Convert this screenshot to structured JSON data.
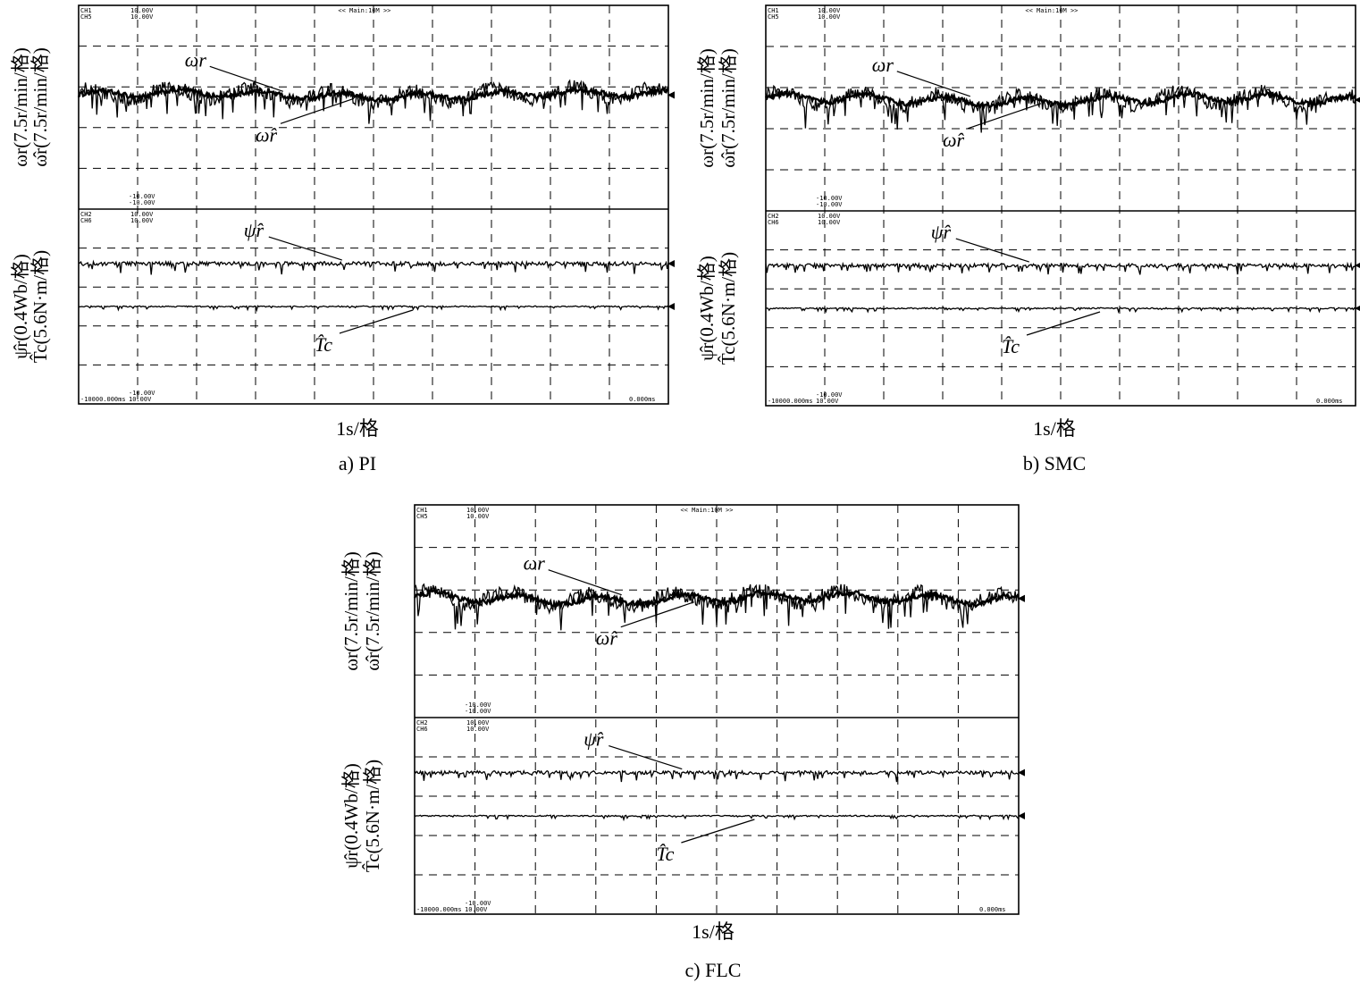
{
  "chart_data": [
    {
      "type": "line",
      "caption": "a) PI",
      "xlabel": "1s/格",
      "scope_text": {
        "ch_top": "CH1\nCH5",
        "volt_top": "10.00V\n10.00V",
        "ch_bot": "CH2\nCH6",
        "volt_bot": "10.00V\n10.00V",
        "neg_top": "-10.00V\n-10.00V",
        "neg_bot": "-10.00V\n10.00V",
        "header": "<< Main:10M >>",
        "time_left": "-10000.000ms",
        "time_right": "0.000ms"
      },
      "upper": {
        "ylabel_1": "ωr(7.5r/min/格)",
        "ylabel_2": "ω̂r(7.5r/min/格)",
        "series": [
          {
            "name": "ωr",
            "level": 2.8,
            "noise": 0.12,
            "ripple": 0.08
          },
          {
            "name": "ω̂r",
            "level": 2.8,
            "noise": 0.35,
            "ripple": 0.14
          }
        ]
      },
      "lower": {
        "ylabel_1": "ψ̂r(0.4Wb/格)",
        "ylabel_2": "T̂c(5.6N·m/格)",
        "series": [
          {
            "name": "ψ̂r",
            "level": 3.6,
            "noise": 0.25
          },
          {
            "name": "T̂c",
            "level": 2.5,
            "noise": 0.08
          }
        ]
      }
    },
    {
      "type": "line",
      "caption": "b) SMC",
      "xlabel": "1s/格",
      "scope_text": {
        "ch_top": "CH1\nCH5",
        "volt_top": "10.00V\n10.00V",
        "ch_bot": "CH2\nCH6",
        "volt_bot": "10.00V\n10.00V",
        "neg_top": "-10.00V\n-10.00V",
        "neg_bot": "-10.00V\n10.00V",
        "header": "<< Main:10M >>",
        "time_left": "-10000.000ms",
        "time_right": "0.000ms"
      },
      "upper": {
        "ylabel_1": "ωr(7.5r/min/格)",
        "ylabel_2": "ω̂r(7.5r/min/格)",
        "series": [
          {
            "name": "ωr",
            "level": 2.7,
            "noise": 0.12,
            "ripple": 0.1
          },
          {
            "name": "ω̂r",
            "level": 2.7,
            "noise": 0.35,
            "ripple": 0.16
          }
        ]
      },
      "lower": {
        "ylabel_1": "ψ̂r(0.4Wb/格)",
        "ylabel_2": "T̂c(5.6N·m/格)",
        "series": [
          {
            "name": "ψ̂r",
            "level": 3.6,
            "noise": 0.22
          },
          {
            "name": "T̂c",
            "level": 2.5,
            "noise": 0.08
          }
        ]
      }
    },
    {
      "type": "line",
      "caption": "c) FLC",
      "xlabel": "1s/格",
      "scope_text": {
        "ch_top": "CH1\nCH5",
        "volt_top": "10.00V\n10.00V",
        "ch_bot": "CH2\nCH6",
        "volt_bot": "10.00V\n10.00V",
        "neg_top": "-10.00V\n-10.00V",
        "neg_bot": "-10.00V\n10.00V",
        "header": "<< Main:10M >>",
        "time_left": "-10000.000ms",
        "time_right": "0.000ms"
      },
      "upper": {
        "ylabel_1": "ωr(7.5r/min/格)",
        "ylabel_2": "ω̂r(7.5r/min/格)",
        "series": [
          {
            "name": "ωr",
            "level": 2.8,
            "noise": 0.12,
            "ripple": 0.1
          },
          {
            "name": "ω̂r",
            "level": 2.8,
            "noise": 0.35,
            "ripple": 0.15
          }
        ]
      },
      "lower": {
        "ylabel_1": "ψ̂r(0.4Wb/格)",
        "ylabel_2": "T̂c(5.6N·m/格)",
        "series": [
          {
            "name": "ψ̂r",
            "level": 3.6,
            "noise": 0.22
          },
          {
            "name": "T̂c",
            "level": 2.5,
            "noise": 0.08
          }
        ]
      }
    }
  ]
}
